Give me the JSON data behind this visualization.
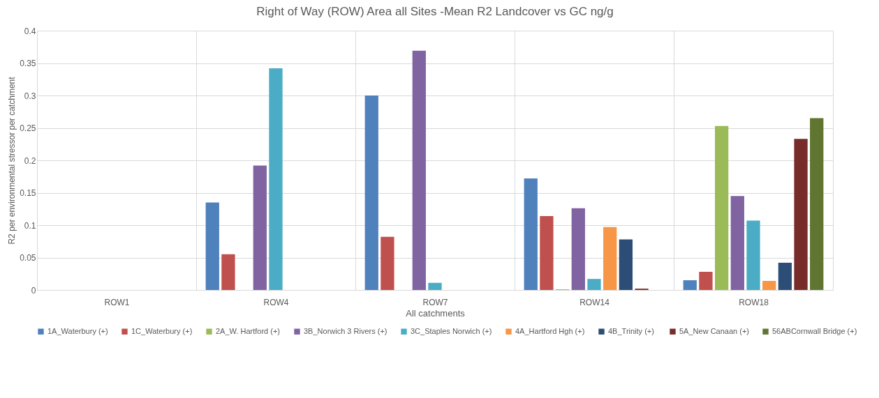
{
  "chart_data": {
    "type": "bar",
    "title": "Right of Way (ROW) Area all Sites -Mean R2 Landcover vs GC ng/g",
    "xlabel": "All catchments",
    "ylabel": "R2 per environmental stressor per catchment",
    "categories": [
      "ROW1",
      "ROW4",
      "ROW7",
      "ROW14",
      "ROW18"
    ],
    "ylim": [
      0,
      0.4
    ],
    "yticks": [
      0,
      0.05,
      0.1,
      0.15,
      0.2,
      0.25,
      0.3,
      0.35,
      0.4
    ],
    "grid": true,
    "legend": "bottom",
    "series": [
      {
        "name": "1A_Waterbury (+)",
        "color": "#4f81bd",
        "values": [
          null,
          0.135,
          0.3,
          0.172,
          0.015
        ]
      },
      {
        "name": "1C_Waterbury (+)",
        "color": "#c0504d",
        "values": [
          null,
          0.055,
          0.082,
          0.114,
          0.028
        ]
      },
      {
        "name": "2A_W. Hartford (+)",
        "color": "#9bbb59",
        "values": [
          null,
          null,
          null,
          0.001,
          0.253
        ]
      },
      {
        "name": "3B_Norwich 3 Rivers (+)",
        "color": "#8064a2",
        "values": [
          null,
          0.192,
          0.369,
          0.126,
          0.145
        ]
      },
      {
        "name": "3C_Staples Norwich (+)",
        "color": "#4bacc6",
        "values": [
          null,
          0.342,
          0.011,
          0.017,
          0.107
        ]
      },
      {
        "name": "4A_Hartford Hgh (+)",
        "color": "#f79646",
        "values": [
          null,
          null,
          null,
          0.097,
          0.014
        ]
      },
      {
        "name": "4B_Trinity  (+)",
        "color": "#2c4d75",
        "values": [
          null,
          null,
          null,
          0.078,
          0.042
        ]
      },
      {
        "name": "5A_New Canaan (+)",
        "color": "#772c2a",
        "values": [
          null,
          null,
          null,
          0.002,
          0.233
        ]
      },
      {
        "name": "56ABCornwall Bridge (+)",
        "color": "#5f7530",
        "values": [
          null,
          null,
          null,
          null,
          0.265
        ]
      }
    ]
  }
}
